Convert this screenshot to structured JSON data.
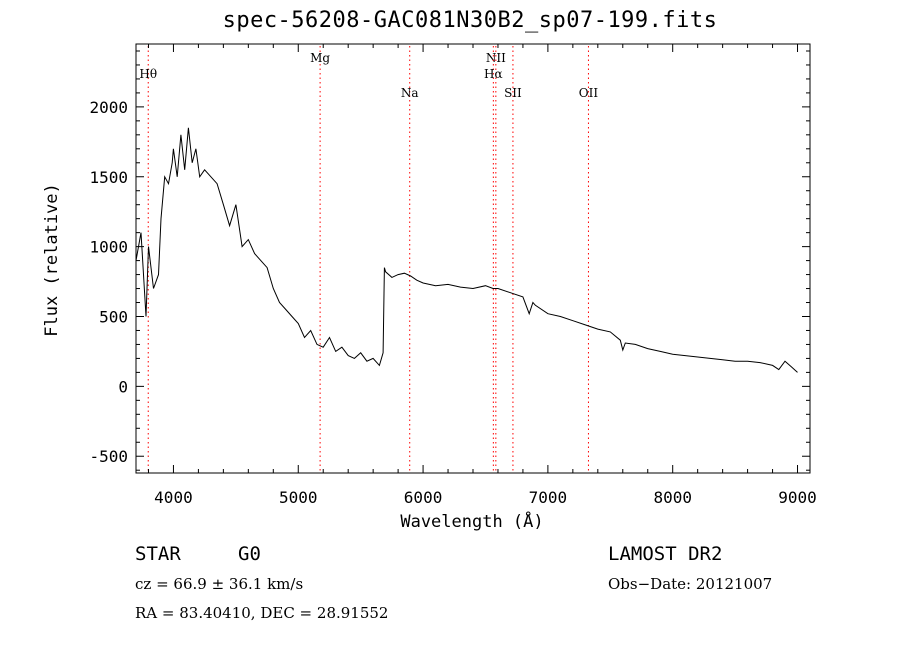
{
  "chart_data": {
    "type": "line",
    "title": "spec-56208-GAC081N30B2_sp07-199.fits",
    "xlabel": "Wavelength (Å)",
    "ylabel": "Flux (relative)",
    "xlim": [
      3700,
      9100
    ],
    "ylim": [
      -620,
      2450
    ],
    "x_ticks": [
      4000,
      5000,
      6000,
      7000,
      8000,
      9000
    ],
    "y_ticks": [
      -500,
      0,
      500,
      1000,
      1500,
      2000
    ],
    "series": [
      {
        "x": [
          3700,
          3740,
          3780,
          3800,
          3840,
          3880,
          3900,
          3930,
          3960,
          3990,
          4000,
          4030,
          4060,
          4090,
          4120,
          4150,
          4180,
          4210,
          4250,
          4300,
          4350,
          4400,
          4450,
          4500,
          4550,
          4600,
          4650,
          4700,
          4750,
          4800,
          4850,
          4900,
          4950,
          5000,
          5050,
          5100,
          5150,
          5200,
          5250,
          5300,
          5350,
          5400,
          5450,
          5500,
          5550,
          5600,
          5650,
          5680,
          5690,
          5700,
          5750,
          5800,
          5850,
          5900,
          5950,
          6000,
          6100,
          6200,
          6300,
          6400,
          6500,
          6560,
          6600,
          6700,
          6800,
          6850,
          6880,
          6900,
          7000,
          7100,
          7200,
          7300,
          7400,
          7500,
          7580,
          7600,
          7620,
          7700,
          7800,
          7900,
          8000,
          8100,
          8200,
          8300,
          8400,
          8500,
          8600,
          8700,
          8800,
          8850,
          8900,
          8950,
          9000
        ],
        "y": [
          900,
          1100,
          500,
          1000,
          700,
          800,
          1200,
          1500,
          1450,
          1600,
          1700,
          1500,
          1800,
          1550,
          1850,
          1600,
          1700,
          1500,
          1550,
          1500,
          1450,
          1300,
          1150,
          1300,
          1000,
          1050,
          950,
          900,
          850,
          700,
          600,
          550,
          500,
          450,
          350,
          400,
          300,
          280,
          350,
          250,
          280,
          220,
          200,
          240,
          180,
          200,
          150,
          240,
          850,
          820,
          780,
          800,
          810,
          790,
          760,
          740,
          720,
          730,
          710,
          700,
          720,
          700,
          700,
          670,
          640,
          520,
          600,
          580,
          520,
          500,
          470,
          440,
          410,
          390,
          330,
          260,
          310,
          300,
          270,
          250,
          230,
          220,
          210,
          200,
          190,
          180,
          180,
          170,
          150,
          120,
          180,
          140,
          100
        ]
      }
    ],
    "line_markers": [
      {
        "label": "Hθ",
        "x": 3798,
        "row": 2
      },
      {
        "label": "Mg",
        "x": 5175,
        "row": 1
      },
      {
        "label": "Na",
        "x": 5893,
        "row": 3
      },
      {
        "label": "NII",
        "x": 6583,
        "row": 1
      },
      {
        "label": "Hα",
        "x": 6563,
        "row": 2
      },
      {
        "label": "SII",
        "x": 6720,
        "row": 3
      },
      {
        "label": "OII",
        "x": 7325,
        "row": 3
      }
    ],
    "line_color": "#000000",
    "marker_color": "#ff0000",
    "grid": false
  },
  "footer": {
    "object_type": "STAR",
    "subclass": "G0",
    "survey": "LAMOST DR2",
    "velocity": "cz = 66.9 ± 36.1 km/s",
    "obs_date": "Obs−Date: 20121007",
    "coords": "RA =  83.40410, DEC =  28.91552"
  }
}
